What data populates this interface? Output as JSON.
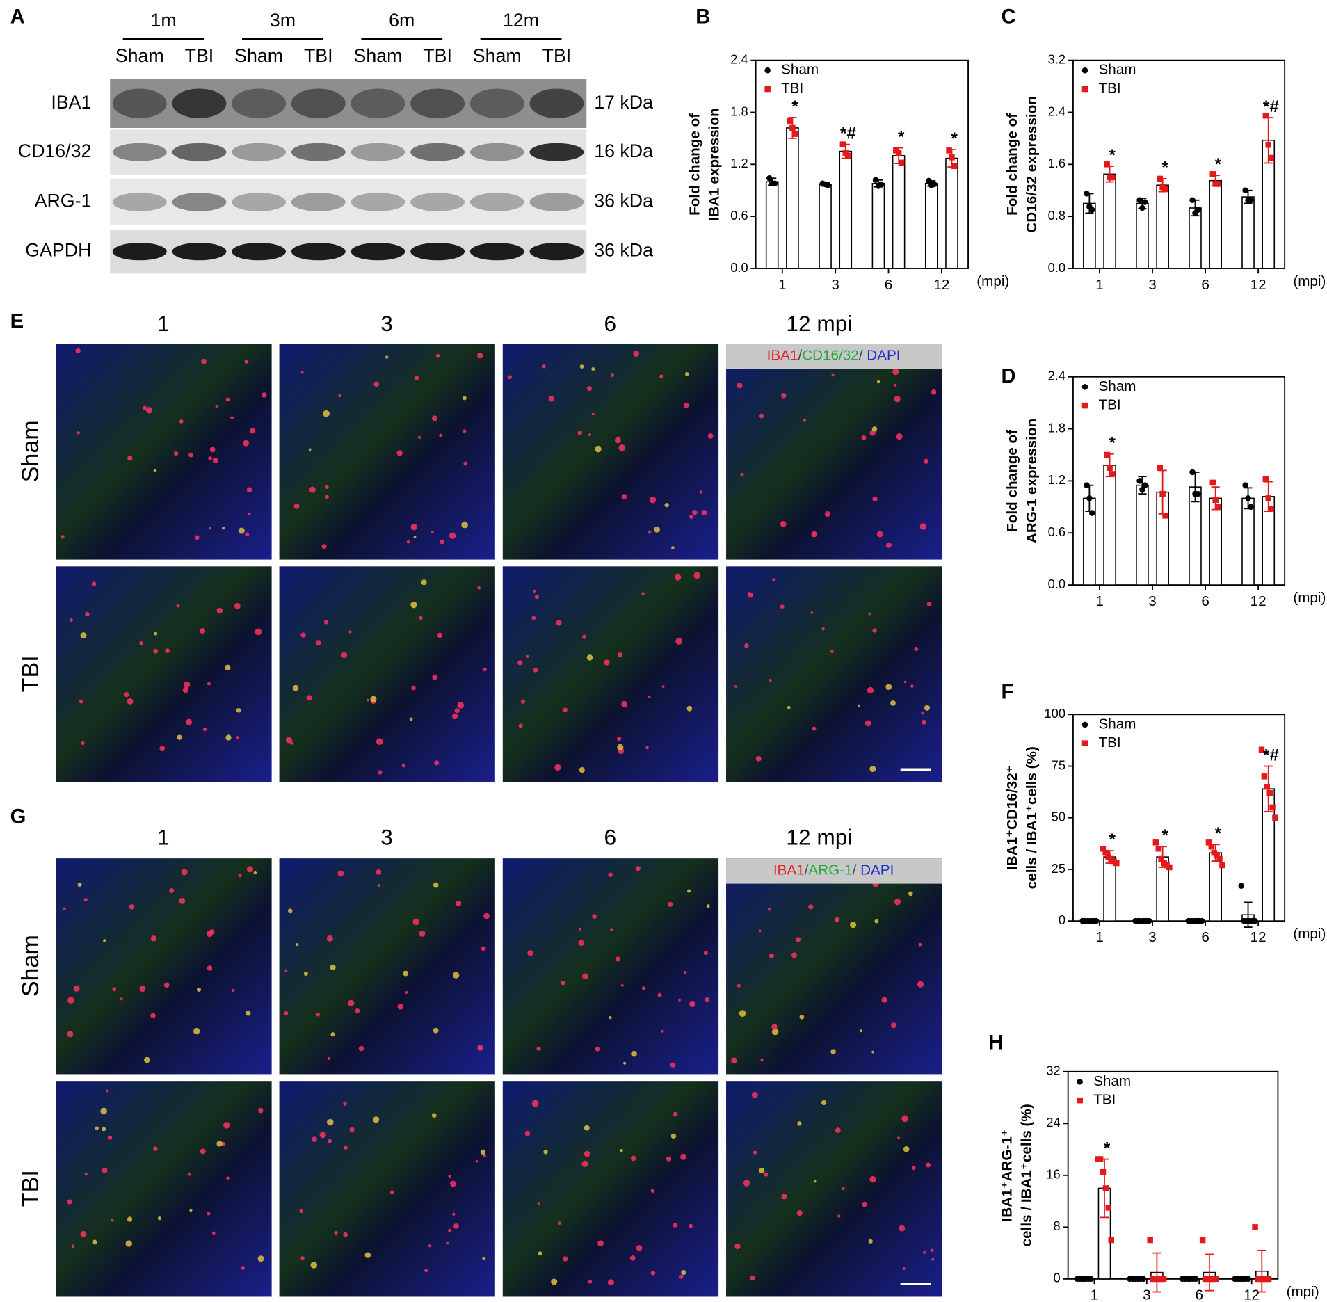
{
  "figure": {
    "panel_labels": [
      "A",
      "B",
      "C",
      "D",
      "E",
      "F",
      "G",
      "H"
    ],
    "blot": {
      "timepoints": [
        "1m",
        "3m",
        "6m",
        "12m"
      ],
      "groups": [
        "Sham",
        "TBI",
        "Sham",
        "TBI",
        "Sham",
        "TBI",
        "Sham",
        "TBI"
      ],
      "proteins": [
        "IBA1",
        "CD16/32",
        "ARG-1",
        "GAPDH"
      ],
      "sizes": [
        "17 kDa",
        "16 kDa",
        "36 kDa",
        "36 kDa"
      ]
    },
    "micrographs": [
      {
        "columns": [
          "1",
          "3",
          "6",
          "12 mpi"
        ],
        "rows": [
          "Sham",
          "TBI"
        ],
        "stain": {
          "parts": [
            "IBA1",
            "/",
            "CD16/32",
            "/ ",
            "DAPI"
          ],
          "colors": [
            "#e8202a",
            "#444444",
            "#1faa3a",
            "#444444",
            "#1a2ccc"
          ]
        }
      },
      {
        "columns": [
          "1",
          "3",
          "6",
          "12 mpi"
        ],
        "rows": [
          "Sham",
          "TBI"
        ],
        "stain": {
          "parts": [
            "IBA1",
            "/",
            "ARG-1",
            "/ ",
            "DAPI"
          ],
          "colors": [
            "#e8202a",
            "#444444",
            "#1faa3a",
            "#444444",
            "#1a2ccc"
          ]
        }
      }
    ]
  },
  "chart_data": [
    {
      "type": "bar",
      "ylabel": [
        "Fold change of",
        "IBA1 expression"
      ],
      "xlabel": "(mpi)",
      "categories": [
        "1",
        "3",
        "6",
        "12"
      ],
      "ylim": [
        0,
        2.4
      ],
      "yticks": [
        {
          "value": 0,
          "label": "0.0"
        },
        {
          "value": 0.6,
          "label": "0.6"
        },
        {
          "value": 1.2,
          "label": "1.2"
        },
        {
          "value": 1.8,
          "label": "1.8"
        },
        {
          "value": 2.4,
          "label": "2.4"
        }
      ],
      "series": [
        {
          "name": "Sham",
          "color": "#000000",
          "values": [
            1.0,
            0.97,
            0.98,
            0.98
          ],
          "errors": [
            0.04,
            0.02,
            0.04,
            0.03
          ],
          "points": [
            [
              1.04,
              0.98,
              0.98
            ],
            [
              0.98,
              0.97,
              0.96
            ],
            [
              1.02,
              0.95,
              0.97
            ],
            [
              1.01,
              0.96,
              0.97
            ]
          ]
        },
        {
          "name": "TBI",
          "color": "#e31a1c",
          "values": [
            1.62,
            1.35,
            1.3,
            1.27
          ],
          "errors": [
            0.12,
            0.08,
            0.09,
            0.1
          ],
          "points": [
            [
              1.7,
              1.62,
              1.55
            ],
            [
              1.43,
              1.33,
              1.3
            ],
            [
              1.36,
              1.33,
              1.22
            ],
            [
              1.36,
              1.28,
              1.18
            ]
          ]
        }
      ],
      "annotations": [
        "*",
        "*#",
        "*",
        "*"
      ]
    },
    {
      "type": "bar",
      "ylabel": [
        "Fold change of",
        "CD16/32 expression"
      ],
      "xlabel": "(mpi)",
      "categories": [
        "1",
        "3",
        "6",
        "12"
      ],
      "ylim": [
        0,
        3.2
      ],
      "yticks": [
        {
          "value": 0,
          "label": "0.0"
        },
        {
          "value": 0.8,
          "label": "0.8"
        },
        {
          "value": 1.6,
          "label": "1.6"
        },
        {
          "value": 2.4,
          "label": "2.4"
        },
        {
          "value": 3.2,
          "label": "3.2"
        }
      ],
      "series": [
        {
          "name": "Sham",
          "color": "#000000",
          "values": [
            1.0,
            1.0,
            0.93,
            1.1
          ],
          "errors": [
            0.15,
            0.08,
            0.12,
            0.1
          ],
          "points": [
            [
              1.15,
              0.95,
              0.9
            ],
            [
              1.05,
              0.93,
              1.02
            ],
            [
              1.05,
              0.85,
              0.9
            ],
            [
              1.2,
              1.05,
              1.05
            ]
          ]
        },
        {
          "name": "TBI",
          "color": "#e31a1c",
          "values": [
            1.45,
            1.28,
            1.35,
            1.97
          ],
          "errors": [
            0.12,
            0.1,
            0.08,
            0.35
          ],
          "points": [
            [
              1.6,
              1.4,
              1.4
            ],
            [
              1.38,
              1.25,
              1.22
            ],
            [
              1.45,
              1.3,
              1.3
            ],
            [
              2.35,
              1.9,
              1.7
            ]
          ]
        }
      ],
      "annotations": [
        "*",
        "*",
        "*",
        "*#"
      ]
    },
    {
      "type": "bar",
      "ylabel": [
        "Fold change of",
        "ARG-1 expression"
      ],
      "xlabel": "(mpi)",
      "categories": [
        "1",
        "3",
        "6",
        "12"
      ],
      "ylim": [
        0,
        2.4
      ],
      "yticks": [
        {
          "value": 0,
          "label": "0.0"
        },
        {
          "value": 0.6,
          "label": "0.6"
        },
        {
          "value": 1.2,
          "label": "1.2"
        },
        {
          "value": 1.8,
          "label": "1.8"
        },
        {
          "value": 2.4,
          "label": "2.4"
        }
      ],
      "series": [
        {
          "name": "Sham",
          "color": "#000000",
          "values": [
            1.0,
            1.15,
            1.13,
            1.0
          ],
          "errors": [
            0.15,
            0.1,
            0.17,
            0.12
          ],
          "points": [
            [
              1.15,
              1.0,
              0.83
            ],
            [
              1.2,
              1.1,
              1.15
            ],
            [
              1.3,
              1.05,
              1.05
            ],
            [
              1.15,
              1.0,
              0.9
            ]
          ]
        },
        {
          "name": "TBI",
          "color": "#e31a1c",
          "values": [
            1.38,
            1.07,
            1.0,
            1.02
          ],
          "errors": [
            0.13,
            0.25,
            0.13,
            0.17
          ],
          "points": [
            [
              1.5,
              1.35,
              1.28
            ],
            [
              1.35,
              1.05,
              0.8
            ],
            [
              1.18,
              0.98,
              0.9
            ],
            [
              1.22,
              1.0,
              0.88
            ]
          ]
        }
      ],
      "annotations": [
        "*",
        null,
        null,
        null
      ]
    },
    {
      "type": "bar",
      "ylabel": [
        "IBA1⁺CD16/32⁺",
        "cells / IBA1⁺cells (%)"
      ],
      "xlabel": "(mpi)",
      "categories": [
        "1",
        "3",
        "6",
        "12"
      ],
      "ylim": [
        0,
        100
      ],
      "yticks": [
        0,
        25,
        50,
        75,
        100
      ],
      "series": [
        {
          "name": "Sham",
          "color": "#000000",
          "values": [
            0,
            0,
            0,
            3
          ],
          "errors": [
            0,
            0,
            0,
            6
          ],
          "points": [
            [
              0,
              0,
              0,
              0,
              0,
              0
            ],
            [
              0,
              0,
              0,
              0,
              0,
              0
            ],
            [
              0,
              0,
              0,
              0,
              0,
              0
            ],
            [
              17,
              0,
              0,
              0,
              0,
              0
            ]
          ]
        },
        {
          "name": "TBI",
          "color": "#e31a1c",
          "values": [
            31,
            31,
            33,
            64
          ],
          "errors": [
            3,
            5,
            4,
            11
          ],
          "points": [
            [
              35,
              33,
              31,
              30,
              29,
              28
            ],
            [
              38,
              35,
              30,
              28,
              27,
              26
            ],
            [
              38,
              36,
              33,
              32,
              30,
              27
            ],
            [
              83,
              70,
              65,
              62,
              55,
              50
            ]
          ]
        }
      ],
      "annotations": [
        "*",
        "*",
        "*",
        "*#"
      ]
    },
    {
      "type": "bar",
      "ylabel": [
        "IBA1⁺ARG-1⁺",
        "cells / IBA1⁺cells (%)"
      ],
      "xlabel": "(mpi)",
      "categories": [
        "1",
        "3",
        "6",
        "12"
      ],
      "ylim": [
        0,
        32
      ],
      "yticks": [
        0,
        8,
        16,
        24,
        32
      ],
      "series": [
        {
          "name": "Sham",
          "color": "#000000",
          "values": [
            0,
            0,
            0,
            0
          ],
          "errors": [
            0,
            0,
            0,
            0
          ],
          "points": [
            [
              0,
              0,
              0,
              0,
              0,
              0
            ],
            [
              0,
              0,
              0,
              0,
              0,
              0
            ],
            [
              0,
              0,
              0,
              0,
              0,
              0
            ],
            [
              0,
              0,
              0,
              0,
              0,
              0
            ]
          ]
        },
        {
          "name": "TBI",
          "color": "#e31a1c",
          "values": [
            14,
            1,
            1,
            1.2
          ],
          "errors": [
            4.5,
            3,
            2.8,
            3.2
          ],
          "points": [
            [
              18.5,
              18.5,
              16.5,
              14,
              11,
              6
            ],
            [
              6,
              0,
              0,
              0,
              0,
              0
            ],
            [
              6,
              0,
              0,
              0,
              0,
              0
            ],
            [
              8,
              0,
              0,
              0,
              0,
              0
            ]
          ]
        }
      ],
      "annotations": [
        "*",
        null,
        null,
        null
      ]
    }
  ]
}
